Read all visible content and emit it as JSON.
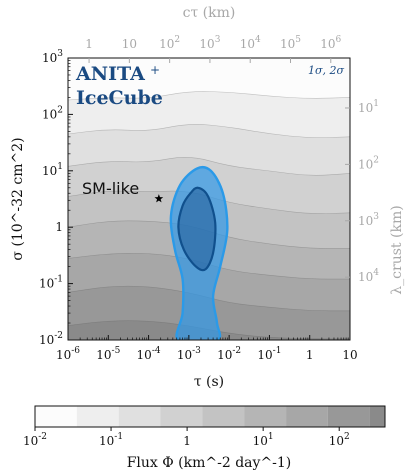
{
  "chart_data": {
    "type": "contour",
    "x": {
      "label": "τ (s)",
      "scale": "log",
      "lim": [
        1e-06,
        10
      ],
      "ticks": [
        {
          "v": 1e-06,
          "label": "10^-6"
        },
        {
          "v": 1e-05,
          "label": "10^-5"
        },
        {
          "v": 0.0001,
          "label": "10^-4"
        },
        {
          "v": 0.001,
          "label": "10^-3"
        },
        {
          "v": 0.01,
          "label": "10^-2"
        },
        {
          "v": 0.1,
          "label": "10^-1"
        },
        {
          "v": 1,
          "label": "1"
        },
        {
          "v": 10,
          "label": "10"
        }
      ]
    },
    "y": {
      "label": "σ (10^-32 cm^2)",
      "scale": "log",
      "lim": [
        0.01,
        1000
      ],
      "ticks": [
        {
          "v": 0.01,
          "label": "10^-2"
        },
        {
          "v": 0.1,
          "label": "10^-1"
        },
        {
          "v": 1,
          "label": "1"
        },
        {
          "v": 10,
          "label": "10^1"
        },
        {
          "v": 100,
          "label": "10^2"
        },
        {
          "v": 1000,
          "label": "10^3"
        }
      ]
    },
    "x2": {
      "label": "cτ (km)",
      "ticks": [
        {
          "v": 1,
          "label": "1"
        },
        {
          "v": 10,
          "label": "10"
        },
        {
          "v": 100,
          "label": "10^2"
        },
        {
          "v": 1000,
          "label": "10^3"
        },
        {
          "v": 10000,
          "label": "10^4"
        },
        {
          "v": 100000,
          "label": "10^5"
        },
        {
          "v": 1000000,
          "label": "10^6"
        }
      ]
    },
    "y2": {
      "label": "λ_crust (km)",
      "ticks": [
        {
          "v": 1,
          "label": "1"
        },
        {
          "v": 10,
          "label": "10^1"
        },
        {
          "v": 100,
          "label": "10^2"
        },
        {
          "v": 1000,
          "label": "10^3"
        },
        {
          "v": 10000,
          "label": "10^4"
        }
      ]
    },
    "colorbar": {
      "label": "Flux Φ (km^-2 day^-1)",
      "scale": "log",
      "lim": [
        0.01,
        400
      ],
      "ticks": [
        {
          "v": 0.01,
          "label": "10^-2"
        },
        {
          "v": 0.1,
          "label": "10^-1"
        },
        {
          "v": 1,
          "label": "1"
        },
        {
          "v": 10,
          "label": "10^1"
        },
        {
          "v": 100,
          "label": "10^2"
        }
      ],
      "levels": [
        0.01,
        0.0355,
        0.126,
        0.447,
        1.58,
        5.62,
        20,
        71,
        251
      ]
    },
    "flux_contours": [
      {
        "level": 0.0355,
        "points": [
          [
            1e-06,
            180
          ],
          [
            1e-05,
            200
          ],
          [
            0.0001,
            190
          ],
          [
            0.001,
            260
          ],
          [
            0.01,
            250
          ],
          [
            0.1,
            210
          ],
          [
            1,
            190
          ],
          [
            10,
            200
          ]
        ]
      },
      {
        "level": 0.126,
        "points": [
          [
            1e-06,
            45
          ],
          [
            1e-05,
            55
          ],
          [
            0.0001,
            50
          ],
          [
            0.001,
            70
          ],
          [
            0.01,
            60
          ],
          [
            0.1,
            45
          ],
          [
            1,
            38
          ],
          [
            10,
            40
          ]
        ]
      },
      {
        "level": 0.447,
        "points": [
          [
            1e-06,
            12
          ],
          [
            1e-05,
            15
          ],
          [
            0.0001,
            14
          ],
          [
            0.001,
            19
          ],
          [
            0.01,
            12
          ],
          [
            0.1,
            10
          ],
          [
            1,
            8
          ],
          [
            10,
            9
          ]
        ]
      },
      {
        "level": 1.58,
        "points": [
          [
            1e-06,
            3.5
          ],
          [
            1e-05,
            4.5
          ],
          [
            0.0001,
            4.2
          ],
          [
            0.001,
            4.5
          ],
          [
            0.01,
            2.7
          ],
          [
            0.1,
            2.1
          ],
          [
            1,
            1.7
          ],
          [
            10,
            1.8
          ]
        ]
      },
      {
        "level": 5.62,
        "points": [
          [
            1e-06,
            1.0
          ],
          [
            1e-05,
            1.3
          ],
          [
            0.0001,
            1.3
          ],
          [
            0.001,
            1.1
          ],
          [
            0.01,
            0.65
          ],
          [
            0.1,
            0.5
          ],
          [
            1,
            0.42
          ],
          [
            10,
            0.42
          ]
        ]
      },
      {
        "level": 20,
        "points": [
          [
            1e-06,
            0.28
          ],
          [
            1e-05,
            0.34
          ],
          [
            0.0001,
            0.35
          ],
          [
            0.001,
            0.28
          ],
          [
            0.01,
            0.17
          ],
          [
            0.1,
            0.14
          ],
          [
            1,
            0.12
          ],
          [
            10,
            0.12
          ]
        ]
      },
      {
        "level": 71,
        "points": [
          [
            1e-06,
            0.07
          ],
          [
            1e-05,
            0.09
          ],
          [
            0.0001,
            0.09
          ],
          [
            0.001,
            0.07
          ],
          [
            0.01,
            0.045
          ],
          [
            0.1,
            0.038
          ],
          [
            1,
            0.033
          ],
          [
            10,
            0.033
          ]
        ]
      },
      {
        "level": 251,
        "points": [
          [
            1e-06,
            0.018
          ],
          [
            1e-05,
            0.022
          ],
          [
            0.0001,
            0.022
          ],
          [
            0.001,
            0.018
          ],
          [
            0.01,
            0.013
          ],
          [
            0.1,
            0.011
          ],
          [
            1,
            0.0105
          ],
          [
            10,
            0.0105
          ]
        ]
      }
    ],
    "regions": [
      {
        "name": "2σ",
        "color": "#3399e6",
        "points": [
          [
            0.0016,
            11
          ],
          [
            0.0035,
            10
          ],
          [
            0.007,
            4
          ],
          [
            0.009,
            0.9
          ],
          [
            0.006,
            0.2
          ],
          [
            0.004,
            0.06
          ],
          [
            0.005,
            0.02
          ],
          [
            0.005,
            0.01
          ],
          [
            0.00055,
            0.01
          ],
          [
            0.0007,
            0.03
          ],
          [
            0.0007,
            0.12
          ],
          [
            0.00045,
            0.4
          ],
          [
            0.00036,
            1.6
          ],
          [
            0.0006,
            5.5
          ]
        ]
      },
      {
        "name": "1σ",
        "color": "#1f6eab",
        "points": [
          [
            0.0017,
            5.0
          ],
          [
            0.003,
            3.5
          ],
          [
            0.0045,
            1.2
          ],
          [
            0.004,
            0.35
          ],
          [
            0.0026,
            0.18
          ],
          [
            0.0015,
            0.2
          ],
          [
            0.00075,
            0.4
          ],
          [
            0.00055,
            1.0
          ],
          [
            0.0007,
            2.4
          ],
          [
            0.0011,
            4.0
          ]
        ]
      }
    ],
    "points": [
      {
        "name": "SM-like",
        "x": 0.00018,
        "y": 3.2,
        "marker": "star"
      }
    ],
    "annotations": {
      "legend_line1": "ANITA",
      "legend_plus": "+",
      "legend_line2": "IceCube",
      "sigma_label": "1σ, 2σ",
      "sm_label": "SM-like"
    },
    "colors": {
      "legend_blue": "#1a4a82",
      "axis_gray": "#a8a8a8"
    }
  }
}
